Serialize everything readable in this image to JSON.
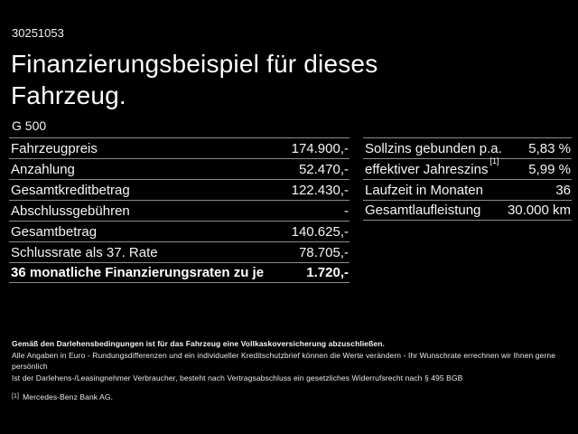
{
  "header": {
    "reference_number": "30251053",
    "title_line1": "Finanzierungsbeispiel für dieses",
    "title_line2": "Fahrzeug.",
    "model": "G 500"
  },
  "left_table": {
    "rows": [
      {
        "label": "Fahrzeugpreis",
        "value": "174.900,-"
      },
      {
        "label": "Anzahlung",
        "value": "52.470,-"
      },
      {
        "label": "Gesamtkreditbetrag",
        "value": "122.430,-"
      },
      {
        "label": "Abschlussgebühren",
        "value": "-"
      },
      {
        "label": "Gesamtbetrag",
        "value": "140.625,-"
      },
      {
        "label": "Schlussrate als 37. Rate",
        "value": "78.705,-"
      },
      {
        "label": "36 monatliche Finanzierungsraten zu je",
        "value": "1.720,-"
      }
    ]
  },
  "right_table": {
    "rows": [
      {
        "label": "Sollzins gebunden p.a.",
        "value": "5,83 %"
      },
      {
        "label": "effektiver Jahreszins",
        "label_superscript": "[1]",
        "value": "5,99 %"
      },
      {
        "label": "Laufzeit in Monaten",
        "value": "36"
      },
      {
        "label": "Gesamtlaufleistung",
        "value": "30.000 km"
      }
    ]
  },
  "footer": {
    "line1": "Gemäß den Darlehensbedingungen ist für das Fahrzeug eine Vollkaskoversicherung abzuschließen.",
    "line2": "Alle Angaben in Euro - Rundungsdifferenzen und ein individueller Kreditschutzbrief können die Werte verändern - Ihr Wunschrate errechnen wir Ihnen gerne persönlich",
    "line3": "Ist der Darlehens-/Leasingnehmer Verbraucher, besteht nach Vertragsabschluss ein gesetzliches Widerrufsrecht nach § 495 BGB",
    "footnote_marker": "[1]",
    "footnote_text": "Mercedes-Benz Bank AG."
  },
  "colors": {
    "background": "#000000",
    "text": "#ffffff",
    "divider": "#8c8c8c"
  }
}
